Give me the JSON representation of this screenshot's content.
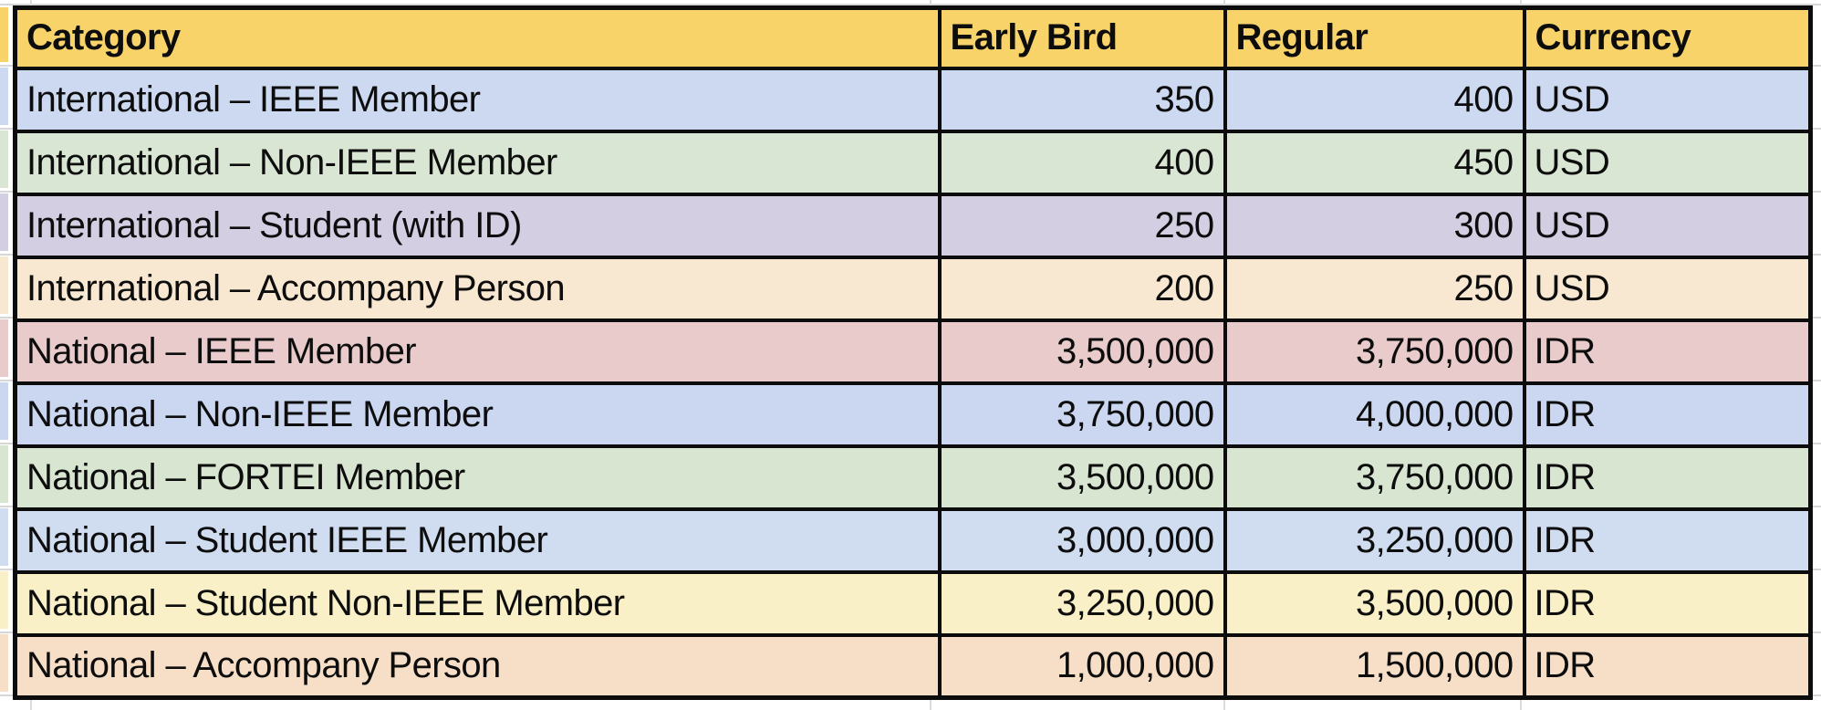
{
  "table": {
    "header_bg": "#F7D36A",
    "border_color": "#0C0C0C",
    "headers": [
      "Category",
      "Early Bird",
      "Regular",
      "Currency"
    ],
    "rows": [
      {
        "category": "International – IEEE Member",
        "early_bird": "350",
        "regular": "400",
        "currency": "USD",
        "color": "#CDD9F1"
      },
      {
        "category": "International – Non-IEEE Member",
        "early_bird": "400",
        "regular": "450",
        "currency": "USD",
        "color": "#D9E6D3"
      },
      {
        "category": "International – Student (with ID)",
        "early_bird": "250",
        "regular": "300",
        "currency": "USD",
        "color": "#D3CEE2"
      },
      {
        "category": "International – Accompany Person",
        "early_bird": "200",
        "regular": "250",
        "currency": "USD",
        "color": "#F9E8D1"
      },
      {
        "category": "National – IEEE Member",
        "early_bird": "3,500,000",
        "regular": "3,750,000",
        "currency": "IDR",
        "color": "#E9CBCC"
      },
      {
        "category": "National – Non-IEEE Member",
        "early_bird": "3,750,000",
        "regular": "4,000,000",
        "currency": "IDR",
        "color": "#CBD7F0"
      },
      {
        "category": "National – FORTEI Member",
        "early_bird": "3,500,000",
        "regular": "3,750,000",
        "currency": "IDR",
        "color": "#D7E5D1"
      },
      {
        "category": "National – Student IEEE Member",
        "early_bird": "3,000,000",
        "regular": "3,250,000",
        "currency": "IDR",
        "color": "#D0DDF0"
      },
      {
        "category": "National – Student Non-IEEE Member",
        "early_bird": "3,250,000",
        "regular": "3,500,000",
        "currency": "IDR",
        "color": "#FAF0C8"
      },
      {
        "category": "National – Accompany Person",
        "early_bird": "1,000,000",
        "regular": "1,500,000",
        "currency": "IDR",
        "color": "#F6DFC6"
      }
    ]
  }
}
